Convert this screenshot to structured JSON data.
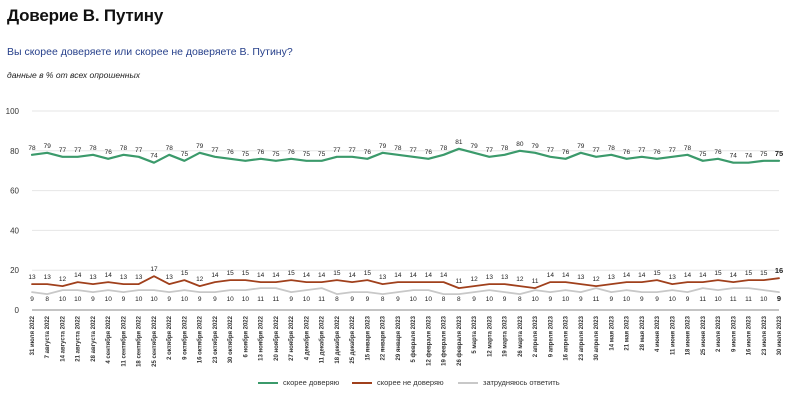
{
  "title": "Доверие В. Путину",
  "subtitle": "Вы скорее доверяете или скорее не доверяете В. Путину?",
  "note": "данные в % от всех опрошенных",
  "colors": {
    "trust": "#3b9a6b",
    "distrust": "#a0401c",
    "hard": "#c8c8c8",
    "grid": "#e6e6e6",
    "axis": "#888888"
  },
  "chart_data": {
    "type": "line",
    "title": "",
    "xlabel": "",
    "ylabel": "",
    "ylim": [
      0,
      100
    ],
    "yticks": [
      0,
      20,
      40,
      60,
      80,
      100
    ],
    "grid": true,
    "legend_position": "bottom",
    "x": [
      "31 июля 2022",
      "7 августа 2022",
      "14 августа 2022",
      "21 августа 2022",
      "28 августа 2022",
      "4 сентября 2022",
      "11 сентября 2022",
      "18 сентября 2022",
      "25 сентября 2022",
      "2 октября 2022",
      "9 октября 2022",
      "16 октября 2022",
      "23 октября 2022",
      "30 октября 2022",
      "6 ноября 2022",
      "13 ноября 2022",
      "20 ноября 2022",
      "27 ноября 2022",
      "4 декабря 2022",
      "11 декабря 2022",
      "18 декабря 2022",
      "25 декабря 2022",
      "15 января 2023",
      "22 января 2023",
      "29 января 2023",
      "5 февраля 2023",
      "12 февраля 2023",
      "19 февраля 2023",
      "26 февраля 2023",
      "5 марта 2023",
      "12 марта 2023",
      "19 марта 2023",
      "26 марта 2023",
      "2 апреля 2023",
      "9 апреля 2023",
      "16 апреля 2023",
      "23 апреля 2023",
      "30 апреля 2023",
      "14 мая 2023",
      "21 мая 2023",
      "28 мая 2023",
      "4 июня 2023",
      "11 июня 2023",
      "18 июня 2023",
      "25 июня 2023",
      "2 июля 2023",
      "9 июля 2023",
      "16 июля 2023",
      "23 июля 2023",
      "30 июля 2023"
    ],
    "series": [
      {
        "name": "скорее доверяю",
        "key": "trust",
        "values": [
          78,
          79,
          77,
          77,
          78,
          76,
          78,
          77,
          74,
          78,
          75,
          79,
          77,
          76,
          75,
          76,
          75,
          76,
          75,
          75,
          77,
          77,
          76,
          79,
          78,
          77,
          76,
          78,
          81,
          79,
          77,
          78,
          80,
          79,
          77,
          76,
          79,
          77,
          78,
          76,
          77,
          76,
          77,
          78,
          75,
          76,
          74,
          74,
          75,
          75
        ]
      },
      {
        "name": "скорее не доверяю",
        "key": "distrust",
        "values": [
          13,
          13,
          12,
          14,
          13,
          14,
          13,
          13,
          17,
          13,
          15,
          12,
          14,
          15,
          15,
          14,
          14,
          15,
          14,
          14,
          15,
          14,
          15,
          13,
          14,
          14,
          14,
          14,
          11,
          12,
          13,
          13,
          12,
          11,
          14,
          14,
          13,
          12,
          13,
          14,
          14,
          15,
          13,
          14,
          14,
          15,
          14,
          15,
          15,
          16
        ]
      },
      {
        "name": "затрудняюсь ответить",
        "key": "hard",
        "values": [
          9,
          8,
          10,
          10,
          9,
          10,
          9,
          10,
          10,
          9,
          10,
          9,
          9,
          10,
          10,
          11,
          11,
          9,
          10,
          11,
          8,
          9,
          9,
          8,
          9,
          10,
          10,
          8,
          8,
          9,
          10,
          9,
          8,
          10,
          9,
          10,
          9,
          11,
          9,
          10,
          9,
          9,
          10,
          9,
          11,
          10,
          11,
          11,
          10,
          9
        ]
      }
    ]
  }
}
